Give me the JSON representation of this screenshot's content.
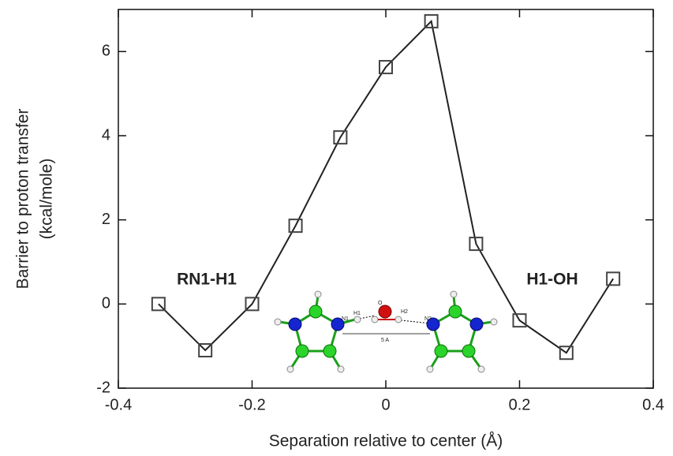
{
  "chart_data": {
    "type": "line",
    "x": [
      -0.34,
      -0.27,
      -0.2,
      -0.135,
      -0.068,
      0,
      0.068,
      0.135,
      0.2,
      0.27,
      0.34
    ],
    "values": [
      0,
      -1.1,
      0,
      1.86,
      3.96,
      5.63,
      6.72,
      1.43,
      -0.39,
      -1.16,
      0.6
    ],
    "color": "#222222",
    "marker_color": "#444444",
    "xlim": [
      -0.4,
      0.4
    ],
    "xticks": [
      -0.4,
      -0.2,
      0,
      0.2,
      0.4
    ],
    "ylim": [
      -2,
      7
    ],
    "yticks": [
      -2,
      0,
      2,
      4,
      6
    ],
    "xlabel": "Separation relative to center (Å)",
    "ylabel": [
      "Barrier to proton transfer",
      "(kcal/mole)"
    ],
    "annotations": [
      {
        "text": "RN1-H1",
        "color": "#1a1adc"
      },
      {
        "text": "H1-OH",
        "color": "#e01010"
      }
    ],
    "inset_labels": [
      "N1",
      "H1",
      "O",
      "H2",
      "N2",
      "5 A"
    ]
  }
}
